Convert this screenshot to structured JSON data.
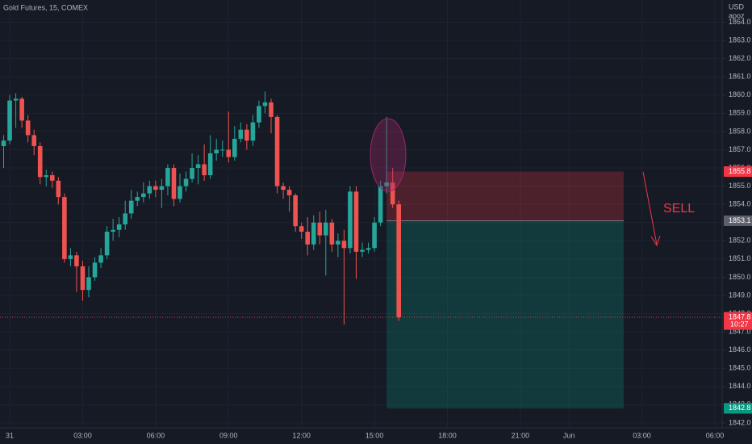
{
  "chart_data": {
    "type": "candlestick",
    "title": "Gold Futures, 15, COMEX",
    "currency": "USD",
    "user": "apoz",
    "up_color": "#26a69a",
    "down_color": "#ef5350",
    "grid": true,
    "x": [
      -0.25,
      0,
      0.25,
      0.5,
      0.75,
      1,
      1.25,
      1.5,
      1.75,
      2,
      2.25,
      2.5,
      2.75,
      3,
      3.25,
      3.5,
      3.75,
      4,
      4.25,
      4.5,
      4.75,
      5,
      5.25,
      5.5,
      5.75,
      6,
      6.25,
      6.5,
      6.75,
      7,
      7.25,
      7.5,
      7.75,
      8,
      8.25,
      8.5,
      8.75,
      9,
      9.25,
      9.5,
      9.75,
      10,
      10.25,
      10.5,
      10.75,
      11,
      11.25,
      11.5,
      11.75,
      12,
      12.25,
      12.5,
      12.75,
      13,
      13.25,
      13.5,
      13.75,
      14,
      14.25,
      14.5,
      14.75,
      15,
      15.25,
      15.5,
      15.75,
      16
    ],
    "open": [
      1857.2,
      1857.5,
      1859.7,
      1859.8,
      1858.6,
      1857.8,
      1857.2,
      1855.5,
      1855.6,
      1855.3,
      1854.4,
      1851.0,
      1851.2,
      1850.6,
      1849.3,
      1850.0,
      1850.8,
      1851.2,
      1852.5,
      1852.6,
      1852.9,
      1853.5,
      1854.2,
      1854.4,
      1854.6,
      1855.0,
      1854.8,
      1855.0,
      1856.0,
      1854.3,
      1855.0,
      1855.4,
      1856.0,
      1856.2,
      1855.6,
      1856.8,
      1857.0,
      1857.0,
      1856.6,
      1857.6,
      1858.1,
      1857.5,
      1858.5,
      1859.4,
      1859.6,
      1858.8,
      1855.0,
      1854.8,
      1854.5,
      1852.8,
      1852.5,
      1851.8,
      1853.0,
      1852.3,
      1853.0,
      1851.8,
      1852.0,
      1851.6,
      1854.7,
      1851.4,
      1851.5,
      1851.6,
      1853.0,
      1855.0,
      1855.2,
      1854.0
    ],
    "high": [
      1857.8,
      1860.0,
      1860.1,
      1859.9,
      1858.9,
      1858.1,
      1857.4,
      1855.9,
      1855.8,
      1855.5,
      1854.6,
      1851.6,
      1851.4,
      1850.9,
      1850.6,
      1851.1,
      1851.6,
      1852.8,
      1853.2,
      1853.3,
      1854.2,
      1854.8,
      1854.7,
      1855.2,
      1855.3,
      1855.3,
      1855.4,
      1856.2,
      1856.2,
      1855.7,
      1855.8,
      1856.8,
      1856.7,
      1857.3,
      1857.8,
      1857.6,
      1857.5,
      1859.1,
      1858.3,
      1858.5,
      1858.4,
      1858.9,
      1859.7,
      1860.2,
      1859.8,
      1858.9,
      1855.2,
      1855.0,
      1854.6,
      1853.0,
      1853.3,
      1853.4,
      1853.6,
      1853.7,
      1853.2,
      1852.4,
      1852.6,
      1855.0,
      1855.0,
      1851.9,
      1851.9,
      1853.3,
      1855.3,
      1858.8,
      1856.0,
      1854.2
    ],
    "low": [
      1856.0,
      1857.3,
      1858.2,
      1858.2,
      1857.4,
      1856.7,
      1855.1,
      1855.0,
      1854.9,
      1854.0,
      1850.8,
      1850.6,
      1849.2,
      1848.7,
      1848.9,
      1849.8,
      1850.5,
      1851.0,
      1852.0,
      1852.2,
      1852.6,
      1853.2,
      1853.9,
      1854.1,
      1854.3,
      1854.4,
      1853.8,
      1854.5,
      1853.9,
      1854.1,
      1854.7,
      1855.2,
      1855.1,
      1855.3,
      1855.4,
      1856.4,
      1856.6,
      1856.3,
      1856.4,
      1857.4,
      1857.0,
      1857.2,
      1858.2,
      1859.0,
      1857.9,
      1854.6,
      1854.3,
      1853.6,
      1852.5,
      1852.1,
      1851.2,
      1851.5,
      1851.8,
      1850.1,
      1851.4,
      1851.1,
      1847.4,
      1851.3,
      1849.9,
      1851.1,
      1851.3,
      1851.4,
      1852.8,
      1854.6,
      1853.8,
      1847.6
    ],
    "close": [
      1857.5,
      1859.7,
      1859.8,
      1858.6,
      1857.8,
      1857.2,
      1855.5,
      1855.6,
      1855.3,
      1854.4,
      1851.0,
      1851.2,
      1850.6,
      1849.3,
      1850.0,
      1850.8,
      1851.2,
      1852.5,
      1852.6,
      1852.9,
      1853.5,
      1854.2,
      1854.4,
      1854.6,
      1855.0,
      1854.8,
      1855.0,
      1856.0,
      1854.3,
      1855.0,
      1855.4,
      1856.0,
      1856.2,
      1855.6,
      1856.8,
      1857.0,
      1857.0,
      1856.6,
      1857.6,
      1858.1,
      1857.5,
      1858.5,
      1859.4,
      1859.6,
      1858.8,
      1855.0,
      1854.8,
      1854.5,
      1852.8,
      1852.5,
      1851.8,
      1853.0,
      1852.3,
      1853.0,
      1851.8,
      1852.0,
      1851.6,
      1854.7,
      1851.4,
      1851.5,
      1851.6,
      1853.0,
      1855.0,
      1855.2,
      1854.0,
      1847.8
    ],
    "xlim": [
      -0.4,
      29.3
    ],
    "ylim": [
      1841.73,
      1865.22
    ],
    "xticks": [
      {
        "value": 0,
        "label": "31"
      },
      {
        "value": 3,
        "label": "03:00"
      },
      {
        "value": 6,
        "label": "06:00"
      },
      {
        "value": 9,
        "label": "09:00"
      },
      {
        "value": 12,
        "label": "12:00"
      },
      {
        "value": 15,
        "label": "15:00"
      },
      {
        "value": 18,
        "label": "18:00"
      },
      {
        "value": 21,
        "label": "21:00"
      },
      {
        "value": 23,
        "label": "Jun"
      },
      {
        "value": 26,
        "label": "03:00"
      },
      {
        "value": 29,
        "label": "06:00"
      }
    ],
    "yticks": [
      {
        "value": 1842,
        "label": "1842.0"
      },
      {
        "value": 1843,
        "label": "1843.0"
      },
      {
        "value": 1844,
        "label": "1844.0"
      },
      {
        "value": 1845,
        "label": "1845.0"
      },
      {
        "value": 1846,
        "label": "1846.0"
      },
      {
        "value": 1847,
        "label": "1847.0"
      },
      {
        "value": 1848,
        "label": "1848.0"
      },
      {
        "value": 1849,
        "label": "1849.0"
      },
      {
        "value": 1850,
        "label": "1850.0"
      },
      {
        "value": 1851,
        "label": "1851.0"
      },
      {
        "value": 1852,
        "label": "1852.0"
      },
      {
        "value": 1853,
        "label": "1853.0"
      },
      {
        "value": 1854,
        "label": "1854.0"
      },
      {
        "value": 1855,
        "label": "1855.0"
      },
      {
        "value": 1856,
        "label": "1856.0"
      },
      {
        "value": 1857,
        "label": "1857.0"
      },
      {
        "value": 1858,
        "label": "1858.0"
      },
      {
        "value": 1859,
        "label": "1859.0"
      },
      {
        "value": 1860,
        "label": "1860.0"
      },
      {
        "value": 1861,
        "label": "1861.0"
      },
      {
        "value": 1862,
        "label": "1862.0"
      },
      {
        "value": 1863,
        "label": "1863.0"
      },
      {
        "value": 1864,
        "label": "1864.0"
      }
    ],
    "position": {
      "start": 15.5,
      "end": 25.25,
      "stop": 1855.8,
      "entry": 1853.1,
      "target": 1842.8
    },
    "price_tags": [
      {
        "value": 1855.8,
        "color": "#f23645"
      },
      {
        "value": 1853.1,
        "color": "#5d606b"
      },
      {
        "value": 1842.8,
        "color": "#089981"
      }
    ],
    "last_price": {
      "value": 1847.8,
      "countdown": "10:27",
      "color": "#f23645"
    },
    "annotation": {
      "text": "SELL",
      "color": "#f23645"
    }
  }
}
